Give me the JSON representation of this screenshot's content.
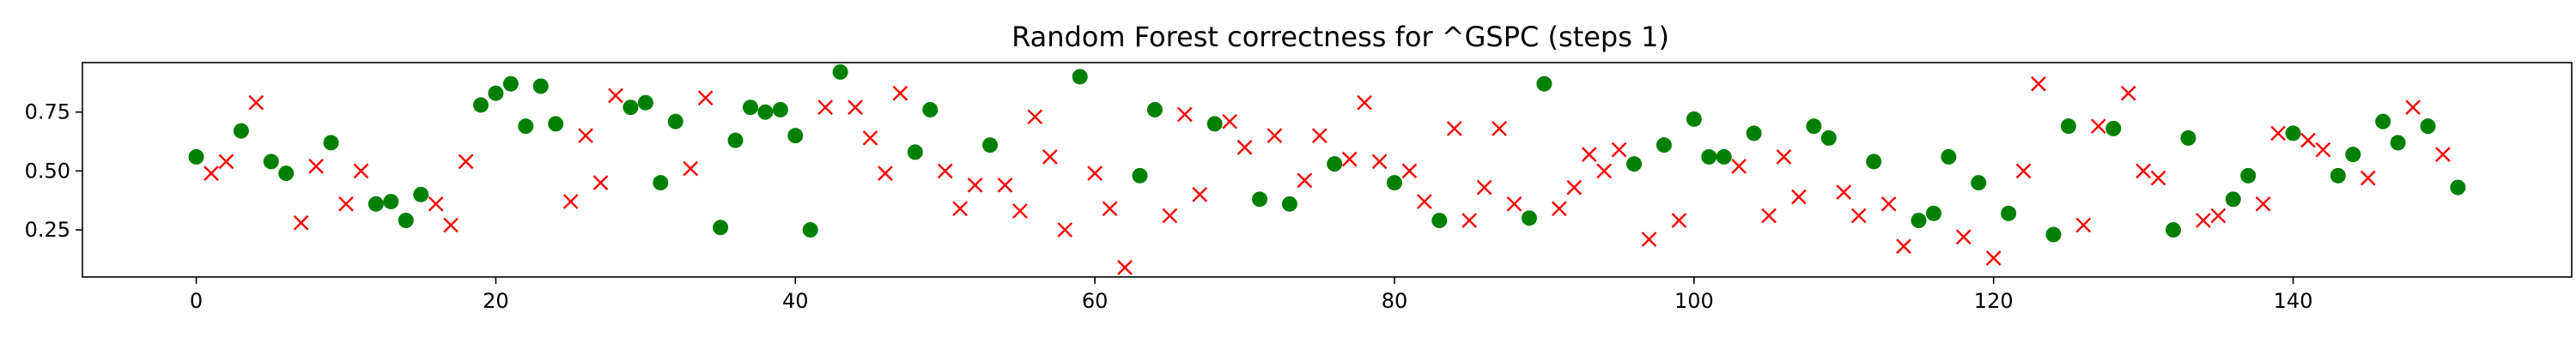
{
  "chart_data": {
    "type": "scatter",
    "title": "Random Forest correctness for ^GSPC (steps 1)",
    "xlabel": "",
    "ylabel": "",
    "xlim": [
      -7.6,
      158.6
    ],
    "ylim": [
      0.05,
      0.96
    ],
    "xticks": [
      0,
      20,
      40,
      60,
      80,
      100,
      120,
      140
    ],
    "yticks": [
      0.25,
      0.5,
      0.75
    ],
    "ytick_labels": [
      "0.25",
      "0.50",
      "0.75"
    ],
    "grid": false,
    "series": [
      {
        "kind": "correct",
        "marker": "filled-circle",
        "color": "#008000",
        "x": [
          0,
          3,
          5,
          6,
          9,
          12,
          13,
          14,
          15,
          19,
          20,
          21,
          22,
          23,
          24,
          29,
          30,
          31,
          32,
          35,
          36,
          37,
          38,
          39,
          40,
          41,
          43,
          48,
          49,
          53,
          59,
          63,
          64,
          68,
          71,
          73,
          76,
          80,
          83,
          89,
          90,
          96,
          98,
          100,
          101,
          102,
          104,
          108,
          109,
          112,
          115,
          116,
          117,
          119,
          121,
          124,
          125,
          128,
          132,
          133,
          136,
          137,
          140,
          143,
          144,
          146,
          147,
          149,
          151
        ],
        "y": [
          0.56,
          0.67,
          0.54,
          0.49,
          0.62,
          0.36,
          0.37,
          0.29,
          0.4,
          0.78,
          0.83,
          0.87,
          0.69,
          0.86,
          0.7,
          0.77,
          0.79,
          0.45,
          0.71,
          0.26,
          0.63,
          0.77,
          0.75,
          0.76,
          0.65,
          0.25,
          0.92,
          0.58,
          0.76,
          0.61,
          0.9,
          0.48,
          0.76,
          0.7,
          0.38,
          0.36,
          0.53,
          0.45,
          0.29,
          0.3,
          0.87,
          0.53,
          0.61,
          0.72,
          0.56,
          0.56,
          0.66,
          0.69,
          0.64,
          0.54,
          0.29,
          0.32,
          0.56,
          0.45,
          0.32,
          0.23,
          0.69,
          0.68,
          0.25,
          0.64,
          0.38,
          0.48,
          0.66,
          0.48,
          0.57,
          0.71,
          0.62,
          0.69,
          0.43
        ]
      },
      {
        "kind": "incorrect",
        "marker": "x",
        "color": "#ff0000",
        "x": [
          1,
          2,
          4,
          7,
          8,
          10,
          11,
          16,
          17,
          18,
          25,
          26,
          27,
          28,
          33,
          34,
          42,
          44,
          45,
          46,
          47,
          50,
          51,
          52,
          54,
          55,
          56,
          57,
          58,
          60,
          61,
          62,
          65,
          66,
          67,
          69,
          70,
          72,
          74,
          75,
          77,
          78,
          79,
          81,
          82,
          84,
          85,
          86,
          87,
          88,
          91,
          92,
          93,
          94,
          95,
          97,
          99,
          103,
          105,
          106,
          107,
          110,
          111,
          113,
          114,
          118,
          120,
          122,
          123,
          126,
          127,
          129,
          130,
          131,
          134,
          135,
          138,
          139,
          141,
          142,
          145,
          148,
          150
        ],
        "y": [
          0.49,
          0.54,
          0.79,
          0.28,
          0.52,
          0.36,
          0.5,
          0.36,
          0.27,
          0.54,
          0.37,
          0.65,
          0.45,
          0.82,
          0.51,
          0.81,
          0.77,
          0.77,
          0.64,
          0.49,
          0.83,
          0.5,
          0.34,
          0.44,
          0.44,
          0.33,
          0.73,
          0.56,
          0.25,
          0.49,
          0.34,
          0.09,
          0.31,
          0.74,
          0.4,
          0.71,
          0.6,
          0.65,
          0.46,
          0.65,
          0.55,
          0.79,
          0.54,
          0.5,
          0.37,
          0.68,
          0.29,
          0.43,
          0.68,
          0.36,
          0.34,
          0.43,
          0.57,
          0.5,
          0.59,
          0.21,
          0.29,
          0.52,
          0.31,
          0.56,
          0.39,
          0.41,
          0.31,
          0.36,
          0.18,
          0.22,
          0.13,
          0.5,
          0.87,
          0.27,
          0.69,
          0.83,
          0.5,
          0.47,
          0.29,
          0.31,
          0.36,
          0.66,
          0.63,
          0.59,
          0.47,
          0.77,
          0.57
        ]
      }
    ]
  }
}
